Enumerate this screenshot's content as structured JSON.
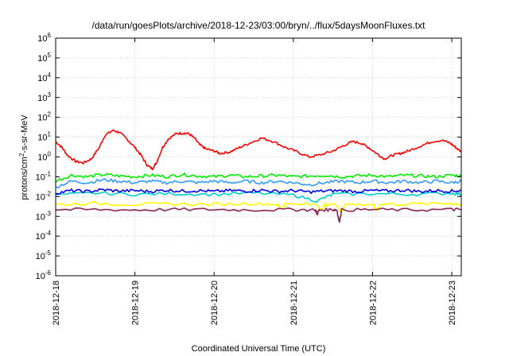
{
  "chart_data": {
    "type": "line",
    "title": "/data/run/goesPlots/archive/2018-12-23/03:00/bryn/../flux/5daysMoonFluxes.txt",
    "xlabel": "Coordinated Universal Time (UTC)",
    "ylabel": "protons/cm²-s-sr-MeV",
    "yscale": "log",
    "ylim": [
      1e-06,
      1000000.0
    ],
    "y_ticks": [
      {
        "value": 1e-06,
        "base": "10",
        "exp": "-6"
      },
      {
        "value": 1e-05,
        "base": "10",
        "exp": "-5"
      },
      {
        "value": 0.0001,
        "base": "10",
        "exp": "-4"
      },
      {
        "value": 0.001,
        "base": "10",
        "exp": "-3"
      },
      {
        "value": 0.01,
        "base": "10",
        "exp": "-2"
      },
      {
        "value": 0.1,
        "base": "10",
        "exp": "-1"
      },
      {
        "value": 1,
        "base": "10",
        "exp": "0"
      },
      {
        "value": 10,
        "base": "10",
        "exp": "1"
      },
      {
        "value": 100,
        "base": "10",
        "exp": "2"
      },
      {
        "value": 1000,
        "base": "10",
        "exp": "3"
      },
      {
        "value": 10000,
        "base": "10",
        "exp": "4"
      },
      {
        "value": 100000,
        "base": "10",
        "exp": "5"
      },
      {
        "value": 1000000,
        "base": "10",
        "exp": "6"
      }
    ],
    "x_ticks": [
      {
        "value": 0,
        "label": "2018-12-18"
      },
      {
        "value": 1,
        "label": "2018-12-19"
      },
      {
        "value": 2,
        "label": "2018-12-20"
      },
      {
        "value": 3,
        "label": "2018-12-21"
      },
      {
        "value": 4,
        "label": "2018-12-22"
      },
      {
        "value": 5,
        "label": "2018-12-23"
      }
    ],
    "xlim_days": [
      0,
      5.12
    ],
    "grid": true,
    "series": [
      {
        "color": "#ff0000",
        "points": [
          [
            0,
            6
          ],
          [
            0.08,
            3
          ],
          [
            0.15,
            1.2
          ],
          [
            0.25,
            0.6
          ],
          [
            0.35,
            0.5
          ],
          [
            0.45,
            0.8
          ],
          [
            0.55,
            3
          ],
          [
            0.62,
            12
          ],
          [
            0.72,
            22
          ],
          [
            0.8,
            18
          ],
          [
            0.9,
            8
          ],
          [
            1.0,
            3
          ],
          [
            1.08,
            1.2
          ],
          [
            1.15,
            0.4
          ],
          [
            1.22,
            0.25
          ],
          [
            1.27,
            0.5
          ],
          [
            1.35,
            3
          ],
          [
            1.42,
            8
          ],
          [
            1.52,
            15
          ],
          [
            1.6,
            16
          ],
          [
            1.68,
            15
          ],
          [
            1.75,
            9
          ],
          [
            1.82,
            4
          ],
          [
            1.9,
            2.5
          ],
          [
            2.0,
            2
          ],
          [
            2.08,
            1.5
          ],
          [
            2.2,
            1.8
          ],
          [
            2.32,
            3
          ],
          [
            2.45,
            5
          ],
          [
            2.6,
            9
          ],
          [
            2.75,
            6
          ],
          [
            2.9,
            3
          ],
          [
            3.05,
            1.8
          ],
          [
            3.2,
            1.0
          ],
          [
            3.35,
            1.3
          ],
          [
            3.5,
            2
          ],
          [
            3.62,
            3.5
          ],
          [
            3.75,
            6
          ],
          [
            3.85,
            5
          ],
          [
            3.95,
            3
          ],
          [
            4.05,
            1.5
          ],
          [
            4.15,
            0.8
          ],
          [
            4.25,
            1.2
          ],
          [
            4.35,
            1.5
          ],
          [
            4.45,
            2
          ],
          [
            4.6,
            3.5
          ],
          [
            4.75,
            6
          ],
          [
            4.88,
            7
          ],
          [
            4.98,
            5
          ],
          [
            5.05,
            3
          ],
          [
            5.12,
            1.8
          ]
        ]
      },
      {
        "color": "#00ee00",
        "points": [
          [
            0,
            0.06
          ],
          [
            0.2,
            0.12
          ],
          [
            0.4,
            0.1
          ],
          [
            0.6,
            0.13
          ],
          [
            0.8,
            0.11
          ],
          [
            1.0,
            0.1
          ],
          [
            1.2,
            0.12
          ],
          [
            1.4,
            0.1
          ],
          [
            1.6,
            0.13
          ],
          [
            1.8,
            0.11
          ],
          [
            2.0,
            0.1
          ],
          [
            2.2,
            0.12
          ],
          [
            2.4,
            0.1
          ],
          [
            2.6,
            0.11
          ],
          [
            2.8,
            0.12
          ],
          [
            3.0,
            0.1
          ],
          [
            3.2,
            0.11
          ],
          [
            3.4,
            0.12
          ],
          [
            3.6,
            0.1
          ],
          [
            3.8,
            0.11
          ],
          [
            4.0,
            0.12
          ],
          [
            4.2,
            0.1
          ],
          [
            4.4,
            0.12
          ],
          [
            4.6,
            0.11
          ],
          [
            4.8,
            0.1
          ],
          [
            5.0,
            0.12
          ],
          [
            5.12,
            0.11
          ]
        ]
      },
      {
        "color": "#3399ff",
        "points": [
          [
            0,
            0.03
          ],
          [
            0.2,
            0.06
          ],
          [
            0.4,
            0.05
          ],
          [
            0.6,
            0.07
          ],
          [
            0.8,
            0.06
          ],
          [
            1.0,
            0.05
          ],
          [
            1.2,
            0.06
          ],
          [
            1.4,
            0.05
          ],
          [
            1.6,
            0.06
          ],
          [
            1.8,
            0.05
          ],
          [
            2.0,
            0.06
          ],
          [
            2.2,
            0.05
          ],
          [
            2.4,
            0.06
          ],
          [
            2.6,
            0.05
          ],
          [
            2.8,
            0.06
          ],
          [
            3.0,
            0.05
          ],
          [
            3.2,
            0.04
          ],
          [
            3.4,
            0.05
          ],
          [
            3.6,
            0.06
          ],
          [
            3.8,
            0.05
          ],
          [
            4.0,
            0.06
          ],
          [
            4.2,
            0.05
          ],
          [
            4.4,
            0.06
          ],
          [
            4.6,
            0.05
          ],
          [
            4.8,
            0.06
          ],
          [
            5.0,
            0.05
          ],
          [
            5.12,
            0.06
          ]
        ]
      },
      {
        "color": "#00cccc",
        "points": [
          [
            0,
            0.012
          ],
          [
            0.5,
            0.015
          ],
          [
            1.0,
            0.013
          ],
          [
            1.5,
            0.014
          ],
          [
            2.0,
            0.013
          ],
          [
            2.5,
            0.015
          ],
          [
            3.0,
            0.012
          ],
          [
            3.3,
            0.006
          ],
          [
            3.5,
            0.013
          ],
          [
            4.0,
            0.014
          ],
          [
            4.5,
            0.013
          ],
          [
            5.0,
            0.015
          ],
          [
            5.12,
            0.013
          ]
        ]
      },
      {
        "color": "#0000ee",
        "points": [
          [
            0,
            0.015
          ],
          [
            0.2,
            0.02
          ],
          [
            0.4,
            0.018
          ],
          [
            0.6,
            0.022
          ],
          [
            0.8,
            0.019
          ],
          [
            1.0,
            0.02
          ],
          [
            1.2,
            0.018
          ],
          [
            1.4,
            0.021
          ],
          [
            1.6,
            0.019
          ],
          [
            1.8,
            0.02
          ],
          [
            2.0,
            0.018
          ],
          [
            2.2,
            0.02
          ],
          [
            2.4,
            0.019
          ],
          [
            2.6,
            0.021
          ],
          [
            2.8,
            0.018
          ],
          [
            3.0,
            0.02
          ],
          [
            3.2,
            0.017
          ],
          [
            3.4,
            0.019
          ],
          [
            3.6,
            0.02
          ],
          [
            3.8,
            0.018
          ],
          [
            4.0,
            0.02
          ],
          [
            4.2,
            0.019
          ],
          [
            4.4,
            0.021
          ],
          [
            4.6,
            0.018
          ],
          [
            4.8,
            0.02
          ],
          [
            5.0,
            0.019
          ],
          [
            5.12,
            0.02
          ]
        ]
      },
      {
        "color": "#ffff00",
        "points": [
          [
            0,
            0.004
          ],
          [
            0.5,
            0.0045
          ],
          [
            1.0,
            0.004
          ],
          [
            1.5,
            0.0042
          ],
          [
            2.0,
            0.004
          ],
          [
            2.5,
            0.0045
          ],
          [
            2.8,
            0.004
          ],
          [
            2.85,
            0.0025
          ],
          [
            2.9,
            0.004
          ],
          [
            3.3,
            0.004
          ],
          [
            3.35,
            0.002
          ],
          [
            3.4,
            0.004
          ],
          [
            3.55,
            0.004
          ],
          [
            3.6,
            0.0015
          ],
          [
            3.65,
            0.004
          ],
          [
            4.0,
            0.004
          ],
          [
            4.05,
            0.002
          ],
          [
            4.1,
            0.004
          ],
          [
            4.5,
            0.0042
          ],
          [
            5.0,
            0.0045
          ],
          [
            5.12,
            0.004
          ]
        ]
      },
      {
        "color": "#8b2252",
        "points": [
          [
            0,
            0.0022
          ],
          [
            0.5,
            0.0022
          ],
          [
            1.0,
            0.0021
          ],
          [
            1.5,
            0.0022
          ],
          [
            2.0,
            0.0022
          ],
          [
            2.5,
            0.0021
          ],
          [
            3.0,
            0.0022
          ],
          [
            3.28,
            0.0021
          ],
          [
            3.3,
            0.0013
          ],
          [
            3.33,
            0.0021
          ],
          [
            3.5,
            0.0022
          ],
          [
            3.55,
            0.0021
          ],
          [
            3.58,
            0.0005
          ],
          [
            3.61,
            0.0021
          ],
          [
            4.0,
            0.0022
          ],
          [
            4.5,
            0.0021
          ],
          [
            5.0,
            0.0022
          ],
          [
            5.12,
            0.0022
          ]
        ]
      }
    ]
  }
}
